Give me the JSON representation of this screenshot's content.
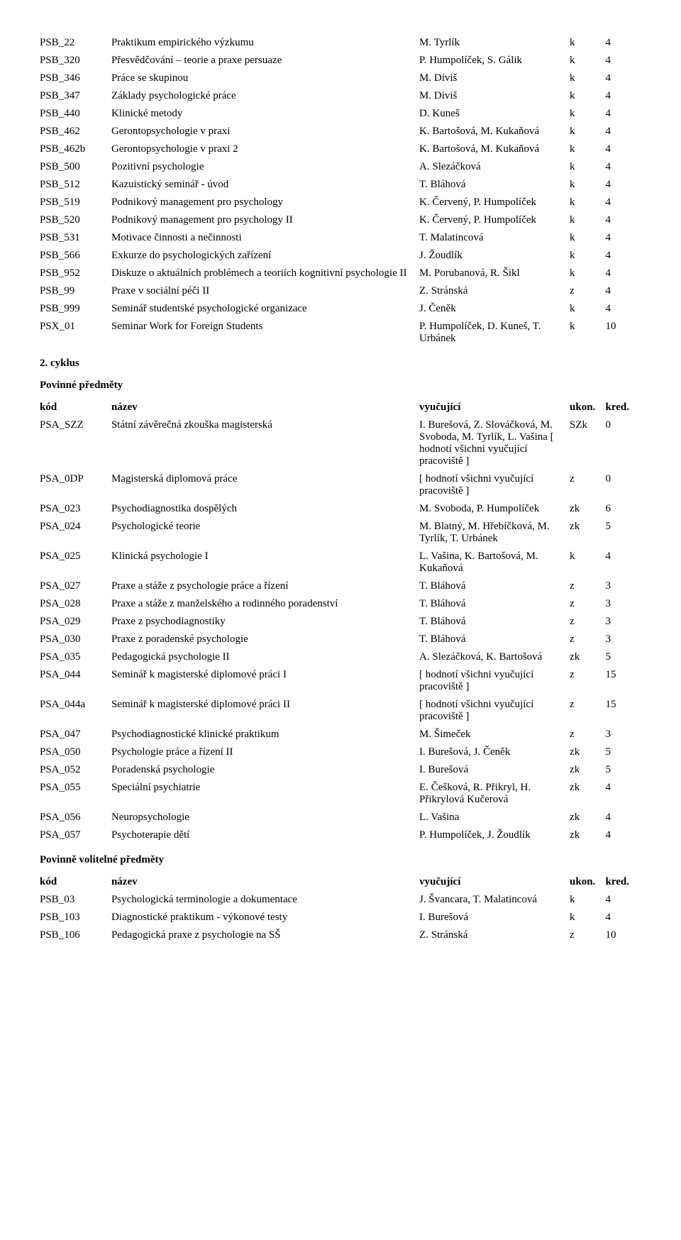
{
  "tables": [
    {
      "rows": [
        {
          "code": "PSB_22",
          "name": "Praktikum empirického výzkumu",
          "teacher": "M. Tyrlík",
          "ukon": "k",
          "kred": "4"
        },
        {
          "code": "PSB_320",
          "name": "Přesvědčování – teorie a praxe persuaze",
          "teacher": "P. Humpolíček, S. Gálik",
          "ukon": "k",
          "kred": "4"
        },
        {
          "code": "PSB_346",
          "name": "Práce se skupinou",
          "teacher": "M. Diviš",
          "ukon": "k",
          "kred": "4"
        },
        {
          "code": "PSB_347",
          "name": "Základy psychologické práce",
          "teacher": "M. Diviš",
          "ukon": "k",
          "kred": "4"
        },
        {
          "code": "PSB_440",
          "name": "Klinické metody",
          "teacher": "D. Kuneš",
          "ukon": "k",
          "kred": "4"
        },
        {
          "code": "PSB_462",
          "name": "Gerontopsychologie v praxi",
          "teacher": "K. Bartošová, M. Kukaňová",
          "ukon": "k",
          "kred": "4"
        },
        {
          "code": "PSB_462b",
          "name": "Gerontopsychologie v praxi 2",
          "teacher": "K. Bartošová, M. Kukaňová",
          "ukon": "k",
          "kred": "4"
        },
        {
          "code": "PSB_500",
          "name": "Pozitivní psychologie",
          "teacher": "A. Slezáčková",
          "ukon": "k",
          "kred": "4"
        },
        {
          "code": "PSB_512",
          "name": "Kazuistický seminář - úvod",
          "teacher": "T. Bláhová",
          "ukon": "k",
          "kred": "4"
        },
        {
          "code": "PSB_519",
          "name": "Podnikový management pro psychology",
          "teacher": "K. Červený, P. Humpolíček",
          "ukon": "k",
          "kred": "4"
        },
        {
          "code": "PSB_520",
          "name": "Podnikový management pro psychology II",
          "teacher": "K. Červený, P. Humpolíček",
          "ukon": "k",
          "kred": "4"
        },
        {
          "code": "PSB_531",
          "name": "Motivace činnosti a nečinnosti",
          "teacher": "T. Malatincová",
          "ukon": "k",
          "kred": "4"
        },
        {
          "code": "PSB_566",
          "name": "Exkurze do psychologických zařízení",
          "teacher": "J. Žoudlík",
          "ukon": "k",
          "kred": "4"
        },
        {
          "code": "PSB_952",
          "name": "Diskuze o aktuálních problémech a teoriích kognitivní psychologie II",
          "teacher": "M. Porubanová, R. Šikl",
          "ukon": "k",
          "kred": "4"
        },
        {
          "code": "PSB_99",
          "name": "Praxe v sociální péči II",
          "teacher": "Z. Stránská",
          "ukon": "z",
          "kred": "4"
        },
        {
          "code": "PSB_999",
          "name": "Seminář studentské psychologické organizace",
          "teacher": "J. Čeněk",
          "ukon": "k",
          "kred": "4"
        },
        {
          "code": "PSX_01",
          "name": "Seminar Work for Foreign Students",
          "teacher": "P. Humpolíček, D. Kuneš, T. Urbánek",
          "ukon": "k",
          "kred": "10"
        }
      ]
    },
    {
      "headings": [
        "2. cyklus",
        "Povinné předměty"
      ],
      "header": {
        "code": "kód",
        "name": "název",
        "teacher": "vyučující",
        "ukon": "ukon.",
        "kred": "kred."
      },
      "rows": [
        {
          "code": "PSA_SZZ",
          "name": "Státní závěrečná zkouška magisterská",
          "teacher": "I. Burešová, Z. Slováčková, M. Svoboda, M. Tyrlík, L. Vašina [ hodnotí všichni vyučující pracoviště ]",
          "ukon": "SZk",
          "kred": "0"
        },
        {
          "code": "PSA_0DP",
          "name": "Magisterská diplomová práce",
          "teacher": "[ hodnotí všichni vyučující pracoviště ]",
          "ukon": "z",
          "kred": "0"
        },
        {
          "code": "PSA_023",
          "name": "Psychodiagnostika dospělých",
          "teacher": "M. Svoboda, P. Humpolíček",
          "ukon": "zk",
          "kred": "6"
        },
        {
          "code": "PSA_024",
          "name": "Psychologické teorie",
          "teacher": "M. Blatný, M. Hřebíčková, M. Tyrlík, T. Urbánek",
          "ukon": "zk",
          "kred": "5"
        },
        {
          "code": "PSA_025",
          "name": "Klinická psychologie I",
          "teacher": "L. Vašina, K. Bartošová, M. Kukaňová",
          "ukon": "k",
          "kred": "4"
        },
        {
          "code": "PSA_027",
          "name": "Praxe a stáže z psychologie práce a řízení",
          "teacher": "T. Bláhová",
          "ukon": "z",
          "kred": "3"
        },
        {
          "code": "PSA_028",
          "name": "Praxe a stáže z manželského a rodinného poradenství",
          "teacher": "T. Bláhová",
          "ukon": "z",
          "kred": "3"
        },
        {
          "code": "PSA_029",
          "name": "Praxe z psychodiagnostiky",
          "teacher": "T. Bláhová",
          "ukon": "z",
          "kred": "3"
        },
        {
          "code": "PSA_030",
          "name": "Praxe z poradenské psychologie",
          "teacher": "T. Bláhová",
          "ukon": "z",
          "kred": "3"
        },
        {
          "code": "PSA_035",
          "name": "Pedagogická psychologie II",
          "teacher": "A. Slezáčková, K. Bartošová",
          "ukon": "zk",
          "kred": "5"
        },
        {
          "code": "PSA_044",
          "name": "Seminář k magisterské diplomové práci I",
          "teacher": "[ hodnotí všichni vyučující pracoviště ]",
          "ukon": "z",
          "kred": "15"
        },
        {
          "code": "PSA_044a",
          "name": "Seminář k magisterské diplomové práci II",
          "teacher": "[ hodnotí všichni vyučující pracoviště ]",
          "ukon": "z",
          "kred": "15"
        },
        {
          "code": "PSA_047",
          "name": "Psychodiagnostické klinické praktikum",
          "teacher": "M. Šimeček",
          "ukon": "z",
          "kred": "3"
        },
        {
          "code": "PSA_050",
          "name": "Psychologie práce a řízení II",
          "teacher": "I. Burešová, J. Čeněk",
          "ukon": "zk",
          "kred": "5"
        },
        {
          "code": "PSA_052",
          "name": "Poradenská psychologie",
          "teacher": "I. Burešová",
          "ukon": "zk",
          "kred": "5"
        },
        {
          "code": "PSA_055",
          "name": "Speciální psychiatrie",
          "teacher": "E. Češková, R. Přikryl, H. Přikrylová Kučerová",
          "ukon": "zk",
          "kred": "4"
        },
        {
          "code": "PSA_056",
          "name": "Neuropsychologie",
          "teacher": "L. Vašina",
          "ukon": "zk",
          "kred": "4"
        },
        {
          "code": "PSA_057",
          "name": "Psychoterapie dětí",
          "teacher": "P. Humpolíček, J. Žoudlík",
          "ukon": "zk",
          "kred": "4"
        }
      ]
    },
    {
      "headings": [
        "Povinně volitelné předměty"
      ],
      "header": {
        "code": "kód",
        "name": "název",
        "teacher": "vyučující",
        "ukon": "ukon.",
        "kred": "kred."
      },
      "rows": [
        {
          "code": "PSB_03",
          "name": "Psychologická terminologie a dokumentace",
          "teacher": "J. Švancara, T. Malatincová",
          "ukon": "k",
          "kred": "4"
        },
        {
          "code": "PSB_103",
          "name": "Diagnostické praktikum - výkonové testy",
          "teacher": "I. Burešová",
          "ukon": "k",
          "kred": "4"
        },
        {
          "code": "PSB_106",
          "name": "Pedagogická praxe z psychologie na SŠ",
          "teacher": "Z. Stránská",
          "ukon": "z",
          "kred": "10"
        }
      ]
    }
  ]
}
